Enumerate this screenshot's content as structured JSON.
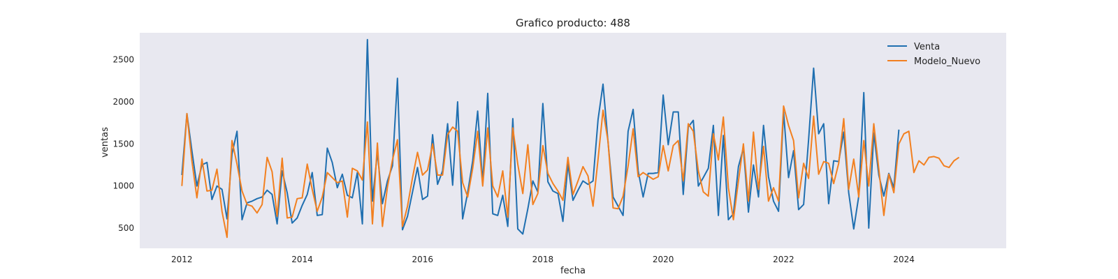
{
  "chart_data": {
    "type": "line",
    "title": "Grafico producto: 488",
    "xlabel": "fecha",
    "ylabel": "ventas",
    "xlim": [
      2011.3,
      2025.7
    ],
    "ylim": [
      260,
      2820
    ],
    "grid": false,
    "legend_position": "top-right",
    "x_ticks": [
      2012,
      2014,
      2016,
      2018,
      2020,
      2022,
      2024
    ],
    "y_ticks": [
      500,
      1000,
      1500,
      2000,
      2500
    ],
    "background": "#e8e8f0",
    "series": [
      {
        "name": "Venta",
        "color": "#1f6fb0",
        "x_start": 2012.0,
        "x_step": 0.08333,
        "values": [
          1130,
          1860,
          1420,
          1000,
          1250,
          1280,
          840,
          1000,
          960,
          610,
          1380,
          1650,
          600,
          800,
          820,
          850,
          870,
          950,
          900,
          550,
          1180,
          920,
          560,
          620,
          770,
          900,
          1160,
          650,
          660,
          1450,
          1280,
          980,
          1140,
          890,
          860,
          1160,
          550,
          2740,
          820,
          1400,
          790,
          1060,
          1240,
          2280,
          480,
          640,
          930,
          1220,
          840,
          880,
          1610,
          1020,
          1180,
          1740,
          1010,
          2000,
          610,
          920,
          1300,
          1890,
          1040,
          2100,
          670,
          650,
          890,
          520,
          1800,
          490,
          430,
          730,
          1060,
          930,
          1980,
          1050,
          940,
          910,
          580,
          1260,
          830,
          950,
          1060,
          1020,
          1060,
          1790,
          2210,
          1520,
          870,
          760,
          650,
          1650,
          1910,
          1180,
          870,
          1150,
          1150,
          1160,
          2080,
          1490,
          1880,
          1880,
          900,
          1700,
          1780,
          1000,
          1100,
          1210,
          1720,
          650,
          1600,
          600,
          670,
          1230,
          1450,
          690,
          1250,
          870,
          1720,
          1110,
          820,
          700,
          1880,
          1100,
          1420,
          720,
          780,
          1550,
          2400,
          1620,
          1740,
          790,
          1300,
          1290,
          1640,
          920,
          490,
          880,
          2110,
          500,
          1630,
          1130,
          880,
          1150,
          980,
          1670
        ]
      },
      {
        "name": "Modelo_Nuevo",
        "color": "#f28020",
        "x_start": 2012.0,
        "x_step": 0.08333,
        "values": [
          1000,
          1860,
          1300,
          860,
          1320,
          940,
          950,
          1200,
          700,
          390,
          1540,
          1260,
          940,
          780,
          760,
          680,
          780,
          1340,
          1170,
          640,
          1330,
          620,
          630,
          850,
          860,
          1260,
          960,
          700,
          870,
          1160,
          1100,
          1040,
          1060,
          630,
          1210,
          1180,
          1070,
          1760,
          550,
          1510,
          520,
          990,
          1310,
          1550,
          520,
          760,
          1100,
          1400,
          1130,
          1190,
          1500,
          1130,
          1130,
          1610,
          1700,
          1650,
          1040,
          870,
          1210,
          1650,
          1000,
          1690,
          1000,
          870,
          1180,
          630,
          1690,
          1260,
          910,
          1490,
          780,
          910,
          1480,
          1150,
          1030,
          940,
          830,
          1340,
          900,
          1060,
          1230,
          1120,
          760,
          1320,
          1900,
          1530,
          740,
          730,
          880,
          1240,
          1680,
          1110,
          1160,
          1120,
          1080,
          1110,
          1480,
          1180,
          1480,
          1540,
          1060,
          1740,
          1650,
          1180,
          930,
          880,
          1620,
          1310,
          1820,
          980,
          600,
          1060,
          1500,
          820,
          1640,
          960,
          1470,
          820,
          980,
          820,
          1950,
          1720,
          1540,
          860,
          1270,
          1090,
          1830,
          1140,
          1290,
          1270,
          1030,
          1270,
          1800,
          960,
          1320,
          870,
          1540,
          1000,
          1740,
          1200,
          650,
          1140,
          920,
          1500,
          1620,
          1650,
          1160,
          1300,
          1250,
          1340,
          1350,
          1330,
          1240,
          1220,
          1300,
          1340
        ]
      }
    ]
  }
}
